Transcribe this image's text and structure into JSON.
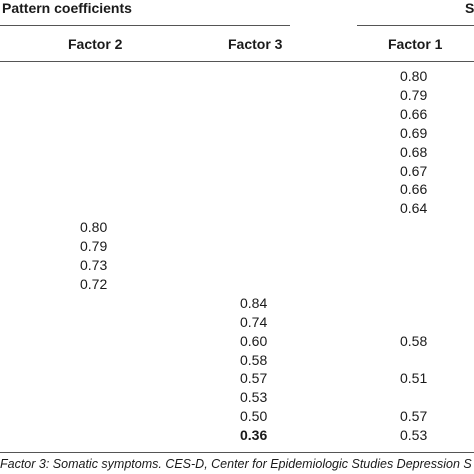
{
  "table": {
    "group_headers": {
      "pattern": "Pattern coefficients",
      "structure_partial": "S"
    },
    "columns": [
      "Factor 2",
      "Factor 3",
      "Factor 1"
    ],
    "rows": [
      {
        "f2": "",
        "f3": "",
        "f1": "0.80"
      },
      {
        "f2": "",
        "f3": "",
        "f1": "0.79"
      },
      {
        "f2": "",
        "f3": "",
        "f1": "0.66"
      },
      {
        "f2": "",
        "f3": "",
        "f1": "0.69"
      },
      {
        "f2": "",
        "f3": "",
        "f1": "0.68"
      },
      {
        "f2": "",
        "f3": "",
        "f1": "0.67"
      },
      {
        "f2": "",
        "f3": "",
        "f1": "0.66"
      },
      {
        "f2": "",
        "f3": "",
        "f1": "0.64"
      },
      {
        "f2": "0.80",
        "f3": "",
        "f1": ""
      },
      {
        "f2": "0.79",
        "f3": "",
        "f1": ""
      },
      {
        "f2": "0.73",
        "f3": "",
        "f1": ""
      },
      {
        "f2": "0.72",
        "f3": "",
        "f1": ""
      },
      {
        "f2": "",
        "f3": "0.84",
        "f1": ""
      },
      {
        "f2": "",
        "f3": "0.74",
        "f1": ""
      },
      {
        "f2": "",
        "f3": "0.60",
        "f1": "0.58"
      },
      {
        "f2": "",
        "f3": "0.58",
        "f1": ""
      },
      {
        "f2": "",
        "f3": "0.57",
        "f1": "0.51"
      },
      {
        "f2": "",
        "f3": "0.53",
        "f1": ""
      },
      {
        "f2": "",
        "f3": "0.50",
        "f1": "0.57"
      },
      {
        "f2": "",
        "f3": "0.36",
        "f1": "0.53",
        "f3_bold": true
      }
    ],
    "footnote": "Factor 3: Somatic symptoms. CES-D, Center for Epidemiologic Studies Depression S"
  }
}
